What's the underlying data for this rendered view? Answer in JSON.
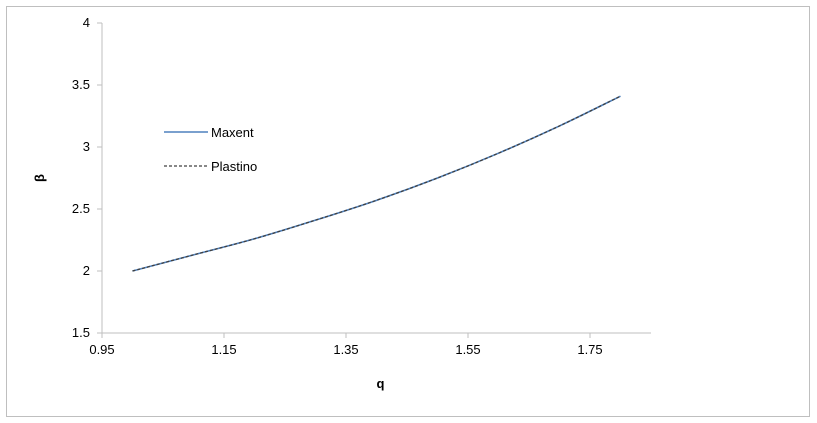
{
  "chart_data": {
    "type": "line",
    "title": "",
    "xlabel": "q",
    "ylabel": "β",
    "xlim": [
      0.95,
      1.85
    ],
    "ylim": [
      1.5,
      4
    ],
    "x_ticks": [
      "0.95",
      "1.15",
      "1.35",
      "1.55",
      "1.75"
    ],
    "y_ticks": [
      "1.5",
      "2",
      "2.5",
      "3",
      "3.5",
      "4"
    ],
    "grid": false,
    "legend_position": "left",
    "series": [
      {
        "name": "Maxent",
        "color": "#4f81bd",
        "dash": "solid",
        "x": [
          1.0,
          1.1,
          1.2,
          1.3,
          1.4,
          1.5,
          1.6,
          1.7,
          1.8
        ],
        "y": [
          2.0,
          2.13,
          2.26,
          2.41,
          2.57,
          2.75,
          2.95,
          3.17,
          3.41
        ]
      },
      {
        "name": "Plastino",
        "color": "#404040",
        "dash": "dashed",
        "x": [
          1.0,
          1.1,
          1.2,
          1.3,
          1.4,
          1.5,
          1.6,
          1.7,
          1.8
        ],
        "y": [
          2.0,
          2.13,
          2.26,
          2.41,
          2.57,
          2.75,
          2.95,
          3.17,
          3.41
        ]
      }
    ]
  }
}
